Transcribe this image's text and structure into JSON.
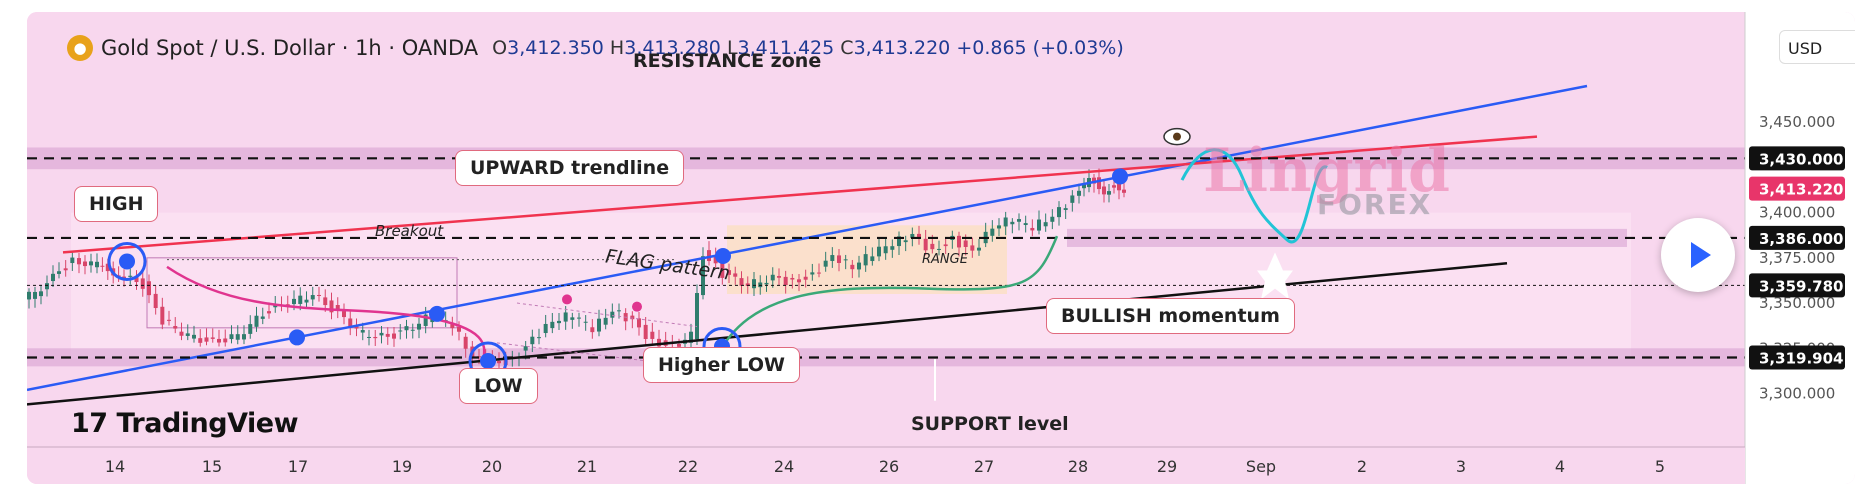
{
  "header": {
    "symbol": "Gold Spot / U.S. Dollar · 1h · OANDA",
    "o_label": "O",
    "o": "3,412.350",
    "h_label": "H",
    "h": "3,413.280",
    "l_label": "L",
    "l": "3,411.425",
    "c_label": "C",
    "c": "3,413.220",
    "change": "+0.865 (+0.03%)"
  },
  "currency": "USD",
  "annotations": {
    "resistance": "RESISTANCE zone",
    "upward": "UPWARD trendline",
    "high": "HIGH",
    "breakout": "Breakout",
    "flag": "FLAG pattern",
    "range": "RANGE",
    "bullish": "BULLISH momentum",
    "low": "LOW",
    "higher_low": "Higher LOW",
    "support": "SUPPORT level",
    "brand": "TradingView",
    "watermark": "Lingrid",
    "watermark2": "FOREX"
  },
  "colors": {
    "up": "#2f7d6d",
    "down": "#d8456a",
    "trend_blue": "#2a5bf5",
    "trend_red": "#f0334f",
    "support_line": "#111111",
    "price_badge": "#e8356a",
    "level_badge": "#111111",
    "forecast": "#22c4d6",
    "momentum": "#3aa878"
  },
  "chart_data": {
    "type": "candlestick",
    "title": "Gold Spot / U.S. Dollar · 1h · OANDA",
    "x_ticks": [
      "14",
      "15",
      "17",
      "19",
      "20",
      "21",
      "22",
      "24",
      "26",
      "27",
      "28",
      "29",
      "Sep",
      "2",
      "3",
      "4",
      "5"
    ],
    "y_ticks": [
      "3,450.000",
      "3,400.000",
      "3,375.000",
      "3,350.000",
      "3,325.000",
      "3,300.000"
    ],
    "ylim": [
      3285,
      3470
    ],
    "levels": [
      {
        "value": 3430.0,
        "label": "3,430.000",
        "style": "dashed"
      },
      {
        "value": 3386.0,
        "label": "3,386.000",
        "style": "dashed"
      },
      {
        "value": 3359.78,
        "label": "3,359.780",
        "style": "dotted"
      },
      {
        "value": 3319.904,
        "label": "3,319.904",
        "style": "dashed"
      }
    ],
    "current_price": {
      "value": 3413.22,
      "label": "3,413.220"
    },
    "path": [
      [
        0,
        3352
      ],
      [
        12,
        3356
      ],
      [
        30,
        3364
      ],
      [
        50,
        3373
      ],
      [
        68,
        3372
      ],
      [
        95,
        3366
      ],
      [
        120,
        3360
      ],
      [
        140,
        3340
      ],
      [
        165,
        3332
      ],
      [
        190,
        3328
      ],
      [
        215,
        3332
      ],
      [
        240,
        3344
      ],
      [
        265,
        3350
      ],
      [
        290,
        3355
      ],
      [
        315,
        3344
      ],
      [
        340,
        3333
      ],
      [
        365,
        3331
      ],
      [
        390,
        3337
      ],
      [
        410,
        3344
      ],
      [
        430,
        3338
      ],
      [
        450,
        3320
      ],
      [
        470,
        3316
      ],
      [
        490,
        3318
      ],
      [
        510,
        3330
      ],
      [
        530,
        3340
      ],
      [
        550,
        3344
      ],
      [
        570,
        3336
      ],
      [
        590,
        3346
      ],
      [
        610,
        3340
      ],
      [
        630,
        3328
      ],
      [
        650,
        3326
      ],
      [
        668,
        3332
      ],
      [
        680,
        3378
      ],
      [
        700,
        3366
      ],
      [
        725,
        3360
      ],
      [
        750,
        3364
      ],
      [
        770,
        3361
      ],
      [
        790,
        3365
      ],
      [
        810,
        3376
      ],
      [
        830,
        3370
      ],
      [
        850,
        3378
      ],
      [
        870,
        3383
      ],
      [
        890,
        3388
      ],
      [
        910,
        3378
      ],
      [
        930,
        3385
      ],
      [
        950,
        3378
      ],
      [
        970,
        3392
      ],
      [
        990,
        3397
      ],
      [
        1010,
        3392
      ],
      [
        1030,
        3398
      ],
      [
        1050,
        3408
      ],
      [
        1065,
        3420
      ],
      [
        1080,
        3412
      ],
      [
        1090,
        3416
      ],
      [
        1100,
        3413
      ]
    ]
  }
}
